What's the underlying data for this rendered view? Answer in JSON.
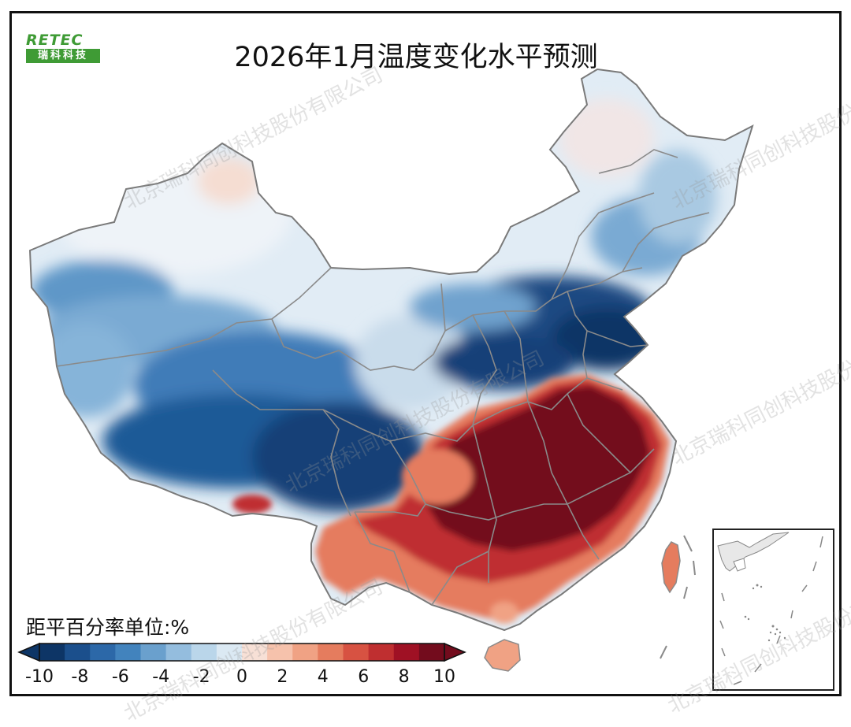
{
  "logo": {
    "latin": "RETEC",
    "chinese": "瑞科科技"
  },
  "title": "2026年1月温度变化水平预测",
  "legend": {
    "title": "距平百分率单位:%",
    "ticks": [
      "-10",
      "-8",
      "-6",
      "-4",
      "-2",
      "0",
      "2",
      "4",
      "6",
      "8",
      "10"
    ],
    "colors": [
      "#0d3566",
      "#1b4f8c",
      "#2c68a8",
      "#4283bd",
      "#6aa0cd",
      "#94bdde",
      "#bad6ea",
      "#dbe9f3",
      "#f7e0d6",
      "#f6c2ac",
      "#f0a284",
      "#e57c5e",
      "#d75242",
      "#bf2f30",
      "#9f1124",
      "#730c1d"
    ]
  },
  "watermark": "北京瑞科同创科技股份有限公司"
}
